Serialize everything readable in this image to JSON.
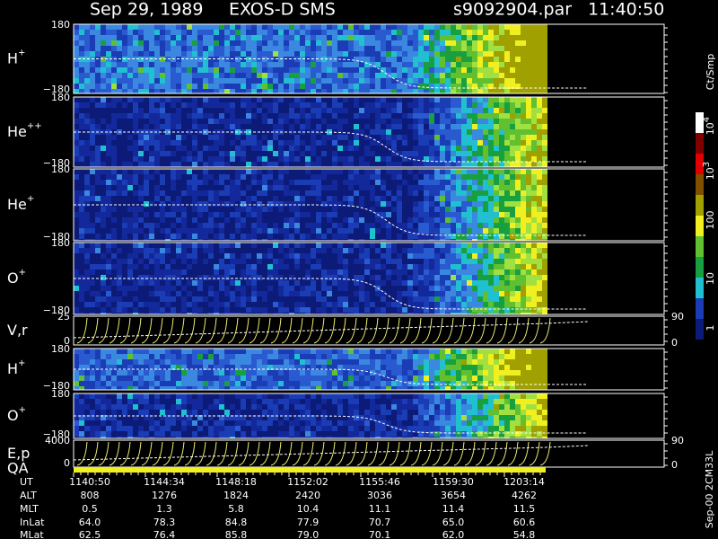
{
  "header": {
    "date": "Sep 29, 1989",
    "instrument": "EXOS-D SMS",
    "file": "s9092904.par",
    "time": "11:40:50"
  },
  "panels": [
    {
      "label": "H",
      "sup": "+",
      "ytop": "180",
      "ybottom": "−180"
    },
    {
      "label": "He",
      "sup": "++",
      "ytop": "180",
      "ybottom": "−180"
    },
    {
      "label": "He",
      "sup": "+",
      "ytop": "180",
      "ybottom": "−180"
    },
    {
      "label": "O",
      "sup": "+",
      "ytop": "180",
      "ybottom": "−180"
    },
    {
      "label": "V,r",
      "ytop": "25",
      "ybottom": "0",
      "rtop": "90",
      "rbottom": "0"
    },
    {
      "label": "H",
      "sup": "+",
      "ytop": "180",
      "ybottom": "−180"
    },
    {
      "label": "O",
      "sup": "+",
      "ytop": "180",
      "ybottom": "−180"
    },
    {
      "label": "E,p",
      "label2": "QA",
      "ytop": "4000",
      "ybottom": "0",
      "rtop": "90",
      "rbottom": "0"
    }
  ],
  "colorbar": {
    "title": "Ct/Smp",
    "labels": [
      {
        "base": "10",
        "sup": "4"
      },
      {
        "base": "10",
        "sup": "3"
      },
      {
        "base": "100"
      },
      {
        "base": "10"
      },
      {
        "base": "1"
      }
    ]
  },
  "side_label": "Sep-00 2CM33L",
  "footer": {
    "row_labels": [
      "UT",
      "ALT",
      "MLT",
      "InLat",
      "MLat"
    ],
    "rows": [
      [
        "1140:50",
        "1144:34",
        "1148:18",
        "1152:02",
        "1155:46",
        "1159:30",
        "1203:14"
      ],
      [
        "808",
        "1276",
        "1824",
        "2420",
        "3036",
        "3654",
        "4262"
      ],
      [
        "0.5",
        "1.3",
        "5.8",
        "10.4",
        "11.1",
        "11.4",
        "11.5"
      ],
      [
        "64.0",
        "78.3",
        "84.8",
        "77.9",
        "70.7",
        "65.0",
        "60.6"
      ],
      [
        "62.5",
        "76.4",
        "85.8",
        "79.0",
        "70.1",
        "62.0",
        "54.8"
      ]
    ]
  }
}
